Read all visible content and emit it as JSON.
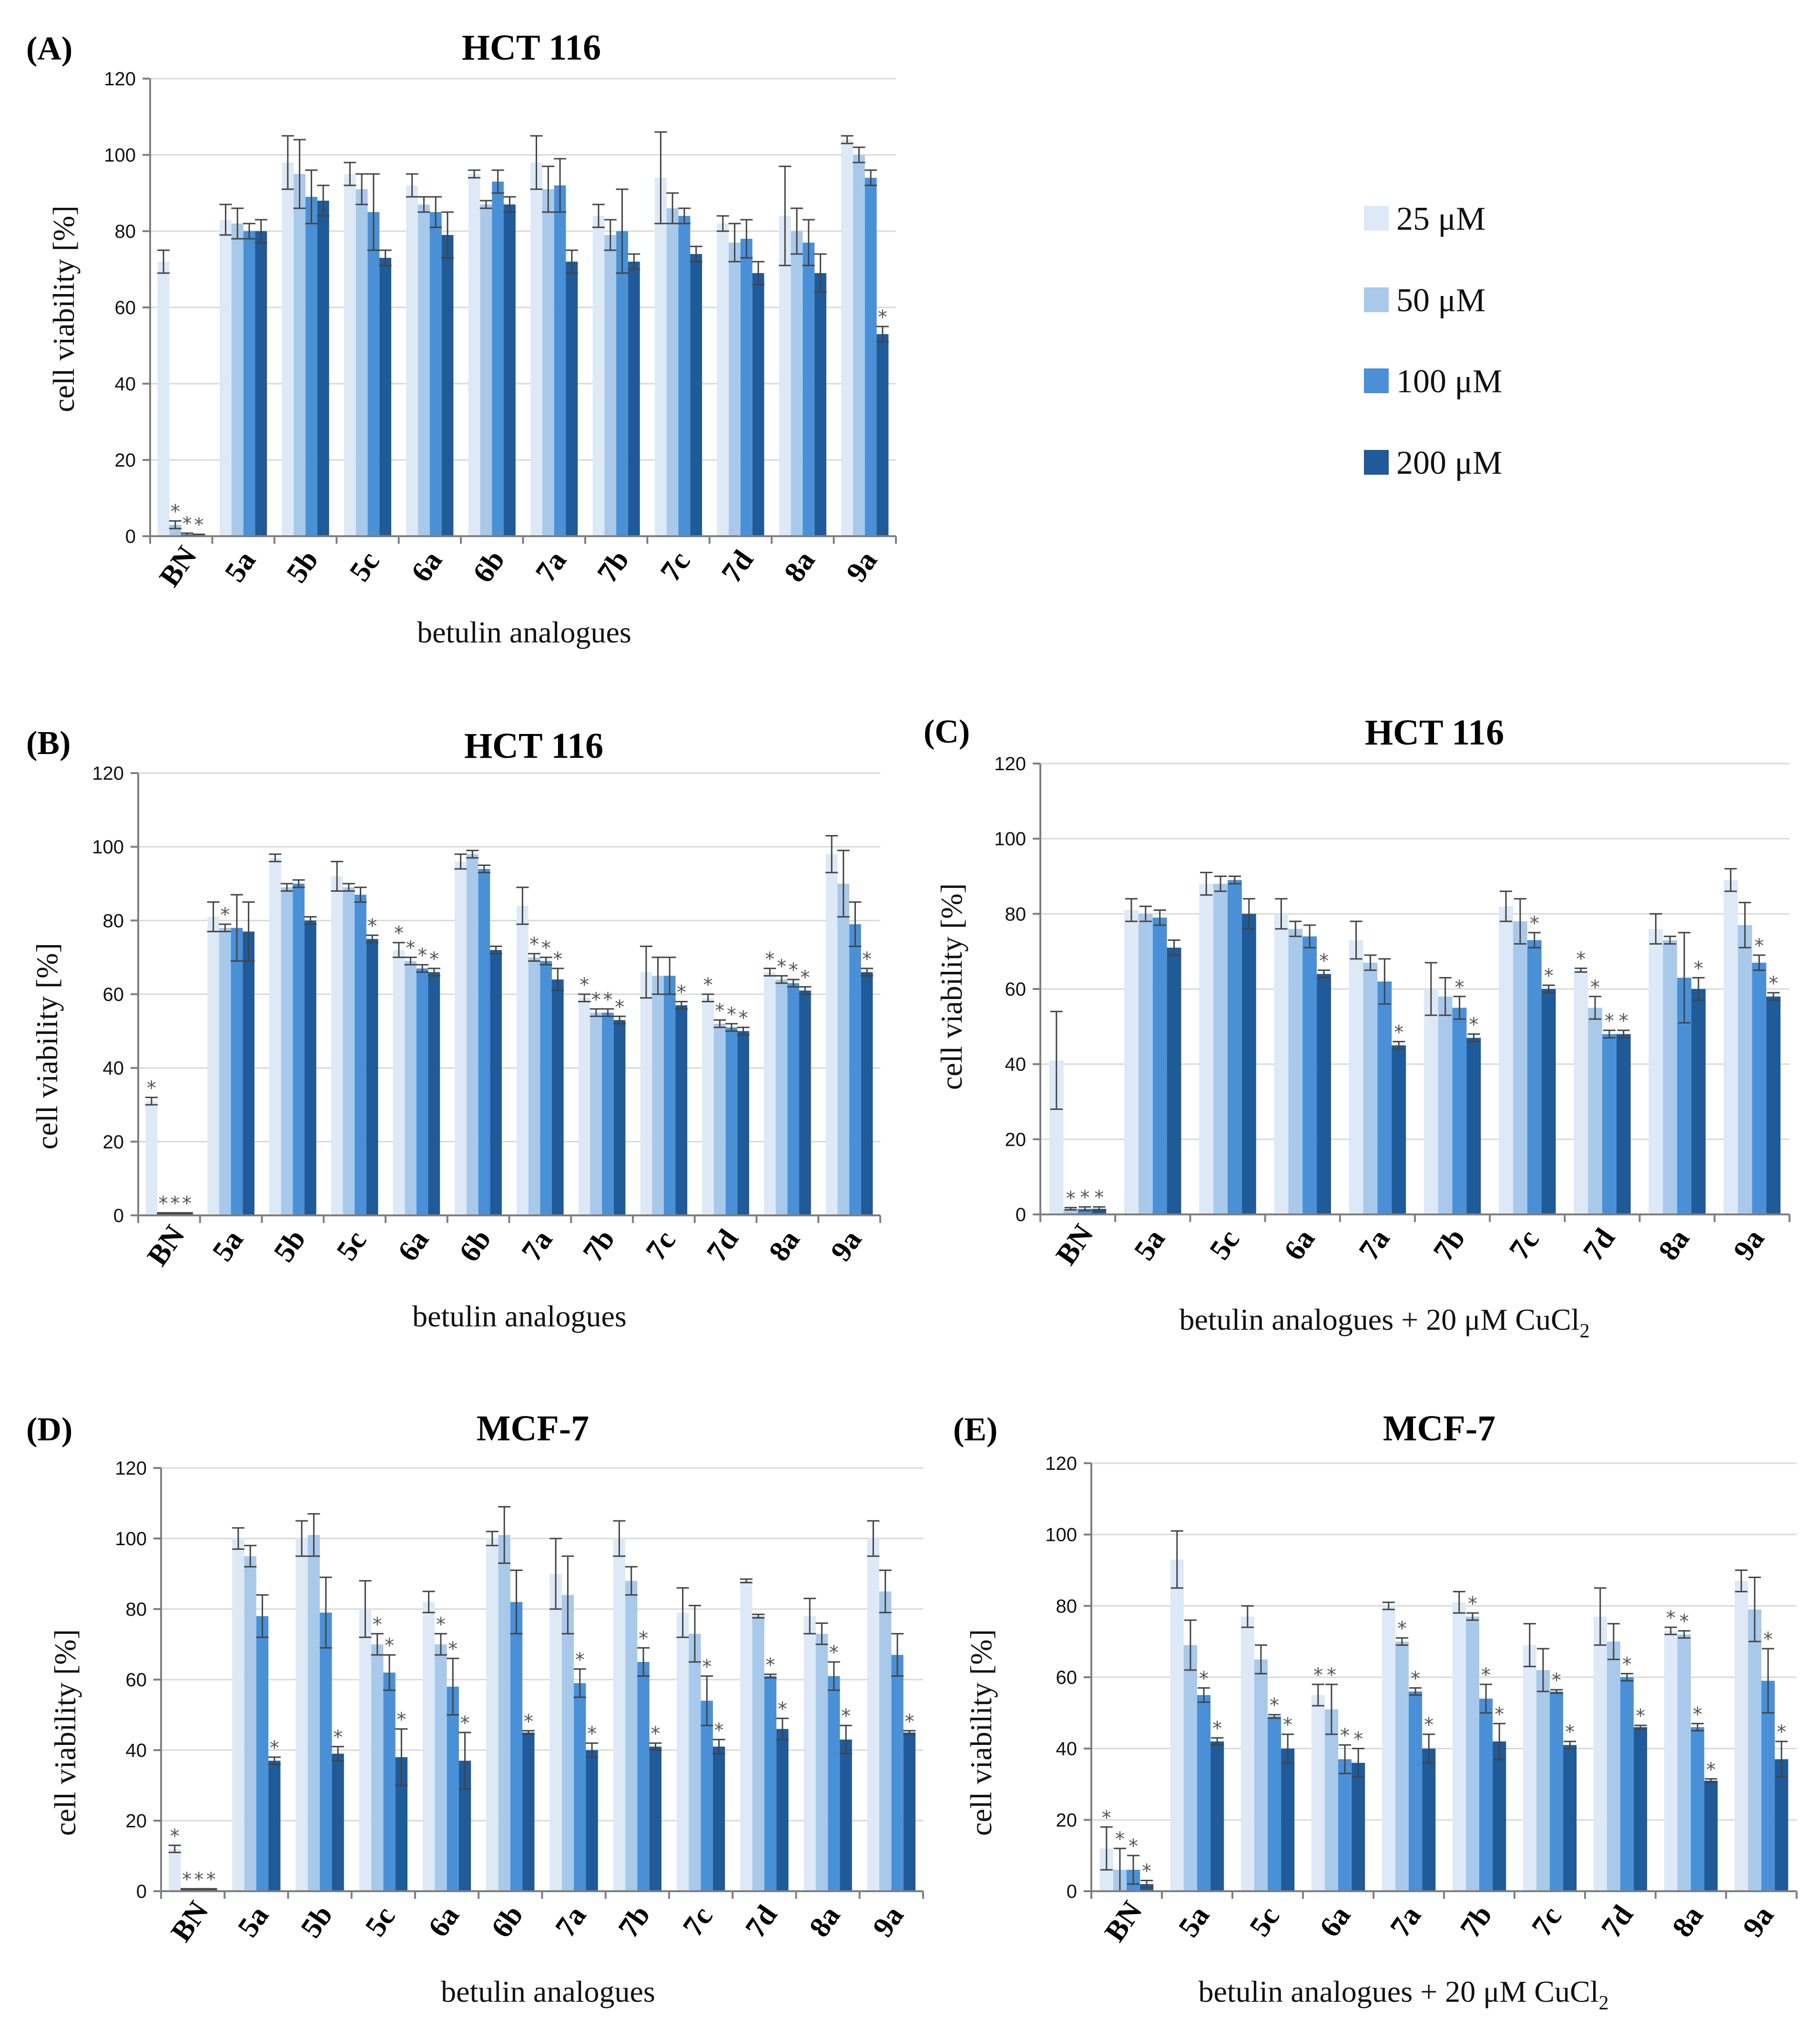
{
  "legend": {
    "items": [
      {
        "label": "25 μM",
        "color": "#dde9f6"
      },
      {
        "label": "50 μM",
        "color": "#a9c9ea"
      },
      {
        "label": "100 μM",
        "color": "#4a90d6"
      },
      {
        "label": "200 μM",
        "color": "#1f5a99"
      }
    ]
  },
  "chart_data": [
    {
      "id": "A",
      "letter": "(A)",
      "type": "bar",
      "title": "HCT 116",
      "xlabel": "betulin analogues",
      "ylabel": "cell viability [%]",
      "ylim": [
        0,
        120
      ],
      "yticks": [
        "0",
        "20",
        "40",
        "60",
        "80",
        "100",
        "120"
      ],
      "categories": [
        "BN",
        "5a",
        "5b",
        "5c",
        "6a",
        "6b",
        "7a",
        "7b",
        "7c",
        "7d",
        "8a",
        "9a"
      ],
      "series": [
        {
          "name": "25 μM",
          "values": [
            72,
            83,
            98,
            95,
            92,
            95,
            98,
            84,
            94,
            82,
            84,
            104
          ],
          "errors": [
            3,
            4,
            7,
            3,
            3,
            1,
            7,
            3,
            12,
            2,
            13,
            1
          ],
          "stars": [
            0,
            0,
            0,
            0,
            0,
            0,
            0,
            0,
            0,
            0,
            0,
            0
          ]
        },
        {
          "name": "50 μM",
          "values": [
            3,
            82,
            95,
            91,
            87,
            87,
            91,
            79,
            86,
            77,
            80,
            100
          ],
          "errors": [
            1,
            4,
            9,
            4,
            2,
            1,
            6,
            4,
            4,
            5,
            6,
            2
          ],
          "stars": [
            1,
            0,
            0,
            0,
            0,
            0,
            0,
            0,
            0,
            0,
            0,
            0
          ]
        },
        {
          "name": "100 μM",
          "values": [
            0.5,
            80,
            89,
            85,
            85,
            93,
            92,
            80,
            84,
            78,
            77,
            94
          ],
          "errors": [
            0.3,
            2,
            7,
            10,
            4,
            3,
            7,
            11,
            2,
            5,
            6,
            2
          ],
          "stars": [
            1,
            0,
            0,
            0,
            0,
            0,
            0,
            0,
            0,
            0,
            0,
            0
          ]
        },
        {
          "name": "200 μM",
          "values": [
            0.3,
            80,
            88,
            73,
            79,
            87,
            72,
            72,
            74,
            69,
            69,
            53
          ],
          "errors": [
            0.2,
            3,
            4,
            2,
            6,
            2,
            3,
            2,
            2,
            3,
            5,
            2
          ],
          "stars": [
            1,
            0,
            0,
            0,
            0,
            0,
            0,
            0,
            0,
            0,
            0,
            1
          ]
        }
      ]
    },
    {
      "id": "B",
      "letter": "(B)",
      "type": "bar",
      "title": "HCT 116",
      "xlabel": "betulin analogues",
      "ylabel": "cell viability [%]",
      "ylim": [
        0,
        120
      ],
      "yticks": [
        "0",
        "20",
        "40",
        "60",
        "80",
        "100",
        "120"
      ],
      "categories": [
        "BN",
        "5a",
        "5b",
        "5c",
        "6a",
        "6b",
        "7a",
        "7b",
        "7c",
        "7d",
        "8a",
        "9a"
      ],
      "series": [
        {
          "name": "25 μM",
          "values": [
            31,
            81,
            97,
            92,
            72,
            96,
            84,
            59,
            66,
            59,
            66,
            98
          ],
          "errors": [
            1,
            4,
            1,
            4,
            2,
            2,
            5,
            1,
            7,
            1,
            1,
            5
          ],
          "stars": [
            1,
            0,
            0,
            0,
            1,
            0,
            0,
            1,
            0,
            1,
            1,
            0
          ]
        },
        {
          "name": "50 μM",
          "values": [
            0.5,
            78,
            89,
            89,
            69,
            98,
            70,
            55,
            65,
            52,
            64,
            90
          ],
          "errors": [
            0.2,
            1,
            1,
            1,
            1,
            1,
            1,
            1,
            5,
            1,
            1,
            9
          ],
          "stars": [
            1,
            1,
            0,
            0,
            1,
            0,
            1,
            1,
            0,
            1,
            1,
            0
          ]
        },
        {
          "name": "100 μM",
          "values": [
            0.5,
            78,
            90,
            87,
            67,
            94,
            69,
            55,
            65,
            51,
            63,
            79
          ],
          "errors": [
            0.2,
            9,
            1,
            2,
            1,
            1,
            1,
            1,
            5,
            1,
            1,
            6
          ],
          "stars": [
            1,
            0,
            0,
            0,
            1,
            0,
            1,
            1,
            0,
            1,
            1,
            0
          ]
        },
        {
          "name": "200 μM",
          "values": [
            0.5,
            77,
            80,
            75,
            66,
            72,
            64,
            53,
            57,
            50,
            61,
            66
          ],
          "errors": [
            0.2,
            8,
            1,
            1,
            1,
            1,
            3,
            1,
            1,
            1,
            1,
            1
          ],
          "stars": [
            1,
            0,
            0,
            1,
            1,
            0,
            1,
            1,
            1,
            1,
            1,
            1
          ]
        }
      ]
    },
    {
      "id": "C",
      "letter": "(C)",
      "type": "bar",
      "title": "HCT 116",
      "xlabel": "betulin analogues + 20 μM CuCl",
      "xlabel_sub": "2",
      "ylabel": "cell viability [%]",
      "ylim": [
        0,
        120
      ],
      "yticks": [
        "0",
        "20",
        "40",
        "60",
        "80",
        "100",
        "120"
      ],
      "categories": [
        "BN",
        "5a",
        "5c",
        "6a",
        "7a",
        "7b",
        "7c",
        "7d",
        "8a",
        "9a"
      ],
      "series": [
        {
          "name": "25 μM",
          "values": [
            41,
            81,
            88,
            80,
            73,
            60,
            82,
            65,
            76,
            89
          ],
          "errors": [
            13,
            3,
            3,
            4,
            5,
            7,
            4,
            0.5,
            4,
            3
          ],
          "stars": [
            0,
            0,
            0,
            0,
            0,
            0,
            0,
            1,
            0,
            0
          ]
        },
        {
          "name": "50 μM",
          "values": [
            1.5,
            80,
            88,
            76,
            67,
            58,
            78,
            55,
            73,
            77
          ],
          "errors": [
            0.3,
            2,
            2,
            2,
            2,
            5,
            6,
            3,
            1,
            6
          ],
          "stars": [
            1,
            0,
            0,
            0,
            0,
            0,
            0,
            1,
            0,
            0
          ]
        },
        {
          "name": "100 μM",
          "values": [
            1.5,
            79,
            89,
            74,
            62,
            55,
            73,
            48,
            63,
            67
          ],
          "errors": [
            0.5,
            2,
            1,
            3,
            6,
            3,
            2,
            1,
            12,
            2
          ],
          "stars": [
            1,
            0,
            0,
            0,
            0,
            1,
            1,
            1,
            0,
            1
          ]
        },
        {
          "name": "200 μM",
          "values": [
            1.5,
            71,
            80,
            64,
            45,
            47,
            60,
            48,
            60,
            58
          ],
          "errors": [
            0.5,
            2,
            4,
            1,
            1,
            1,
            1,
            1,
            3,
            1
          ],
          "stars": [
            1,
            0,
            0,
            1,
            1,
            1,
            1,
            1,
            1,
            1
          ]
        }
      ]
    },
    {
      "id": "D",
      "letter": "(D)",
      "type": "bar",
      "title": "MCF-7",
      "xlabel": "betulin analogues",
      "ylabel": "cell viability [%]",
      "ylim": [
        0,
        120
      ],
      "yticks": [
        "0",
        "20",
        "40",
        "60",
        "80",
        "100",
        "120"
      ],
      "categories": [
        "BN",
        "5a",
        "5b",
        "5c",
        "6a",
        "6b",
        "7a",
        "7b",
        "7c",
        "7d",
        "8a",
        "9a"
      ],
      "series": [
        {
          "name": "25 μM",
          "values": [
            12,
            100,
            100,
            80,
            82,
            100,
            90,
            100,
            79,
            88,
            78,
            100
          ],
          "errors": [
            1,
            3,
            5,
            8,
            3,
            2,
            10,
            5,
            7,
            0.5,
            5,
            5
          ],
          "stars": [
            1,
            0,
            0,
            0,
            0,
            0,
            0,
            0,
            0,
            0,
            0,
            0
          ]
        },
        {
          "name": "50 μM",
          "values": [
            0.5,
            95,
            101,
            70,
            70,
            101,
            84,
            88,
            73,
            78,
            73,
            85
          ],
          "errors": [
            0.2,
            3,
            6,
            3,
            3,
            8,
            11,
            4,
            8,
            0.5,
            3,
            6
          ],
          "stars": [
            1,
            0,
            0,
            1,
            1,
            0,
            0,
            0,
            0,
            0,
            0,
            0
          ]
        },
        {
          "name": "100 μM",
          "values": [
            0.5,
            78,
            79,
            62,
            58,
            82,
            59,
            65,
            54,
            61,
            61,
            67
          ],
          "errors": [
            0.2,
            6,
            10,
            5,
            8,
            9,
            4,
            4,
            7,
            0.5,
            4,
            6
          ],
          "stars": [
            1,
            0,
            0,
            1,
            1,
            0,
            1,
            1,
            1,
            1,
            1,
            0
          ]
        },
        {
          "name": "200 μM",
          "values": [
            0.5,
            37,
            39,
            38,
            37,
            45,
            40,
            41,
            41,
            46,
            43,
            45
          ],
          "errors": [
            0.2,
            1,
            2,
            8,
            8,
            0.5,
            2,
            1,
            2,
            3,
            4,
            0.5
          ],
          "stars": [
            1,
            1,
            1,
            1,
            1,
            1,
            1,
            1,
            1,
            1,
            1,
            1
          ]
        }
      ]
    },
    {
      "id": "E",
      "letter": "(E)",
      "type": "bar",
      "title": "MCF-7",
      "xlabel": "betulin analogues + 20 μM CuCl",
      "xlabel_sub": "2",
      "ylabel": "cell viability [%]",
      "ylim": [
        0,
        120
      ],
      "yticks": [
        "0",
        "20",
        "40",
        "60",
        "80",
        "100",
        "120"
      ],
      "categories": [
        "BN",
        "5a",
        "5c",
        "6a",
        "7a",
        "7b",
        "7c",
        "7d",
        "8a",
        "9a"
      ],
      "series": [
        {
          "name": "25 μM",
          "values": [
            12,
            93,
            77,
            55,
            80,
            81,
            69,
            77,
            73,
            87
          ],
          "errors": [
            6,
            8,
            3,
            3,
            1,
            3,
            6,
            8,
            1,
            3
          ],
          "stars": [
            1,
            0,
            0,
            1,
            0,
            0,
            0,
            0,
            1,
            0
          ]
        },
        {
          "name": "50 μM",
          "values": [
            6,
            69,
            65,
            51,
            70,
            77,
            62,
            70,
            72,
            79
          ],
          "errors": [
            6,
            7,
            4,
            7,
            1,
            1,
            6,
            5,
            1,
            9
          ],
          "stars": [
            1,
            0,
            0,
            1,
            1,
            1,
            0,
            0,
            1,
            0
          ]
        },
        {
          "name": "100 μM",
          "values": [
            6,
            55,
            49,
            37,
            56,
            54,
            56,
            60,
            46,
            59
          ],
          "errors": [
            4,
            2,
            0.5,
            4,
            1,
            4,
            0.5,
            1,
            1,
            9
          ],
          "stars": [
            1,
            1,
            1,
            1,
            1,
            1,
            1,
            1,
            1,
            1
          ]
        },
        {
          "name": "200 μM",
          "values": [
            2,
            42,
            40,
            36,
            40,
            42,
            41,
            46,
            31,
            37
          ],
          "errors": [
            1,
            1,
            4,
            4,
            4,
            5,
            1,
            0.5,
            0.5,
            5
          ],
          "stars": [
            1,
            1,
            1,
            1,
            1,
            1,
            1,
            1,
            1,
            1
          ]
        }
      ]
    }
  ]
}
